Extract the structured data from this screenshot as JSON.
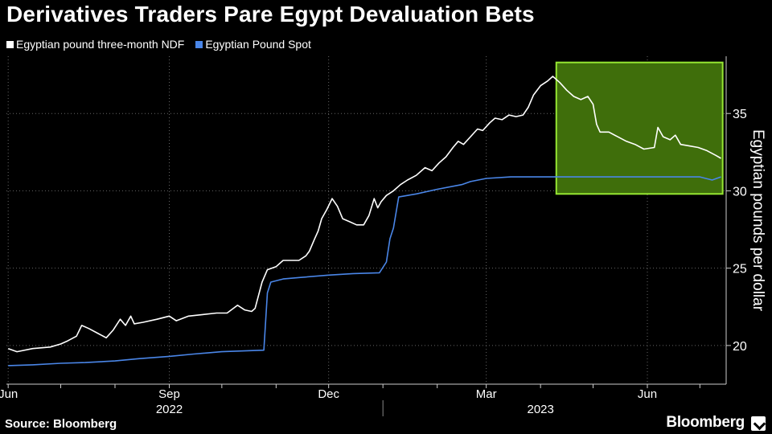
{
  "header": {
    "title": "Derivatives Traders Pare Egypt Devaluation Bets"
  },
  "footer": {
    "source": "Source: Bloomberg",
    "brand": "Bloomberg"
  },
  "colors": {
    "background": "#000000",
    "ndf_line": "#ffffff",
    "spot_line": "#4a86e8",
    "highlight_fill": "#3f6e0b",
    "highlight_stroke": "#96e632",
    "gridline": "#666666"
  },
  "chart_data": {
    "type": "line",
    "title": "Derivatives Traders Pare Egypt Devaluation Bets",
    "xlabel": "",
    "ylabel": "Egyptian pounds per dollar",
    "ylim": [
      17.5,
      38.7
    ],
    "yticks": [
      20,
      25,
      30,
      35
    ],
    "xlim": [
      "2022-05-31",
      "2023-07-16"
    ],
    "xticks": [
      {
        "date": "2022-06-01",
        "label": "Jun"
      },
      {
        "date": "2022-09-01",
        "label": "Sep"
      },
      {
        "date": "2022-12-01",
        "label": "Dec"
      },
      {
        "date": "2023-03-01",
        "label": "Mar"
      },
      {
        "date": "2023-06-01",
        "label": "Jun"
      }
    ],
    "year_labels": [
      {
        "label": "2022",
        "date": "2022-09-01"
      },
      {
        "label": "2023",
        "date": "2023-04-01"
      }
    ],
    "year_divider": "2023-01-01",
    "grid": true,
    "legend_position": "top-left",
    "highlight": {
      "x_start": "2023-04-10",
      "x_end": "2023-07-14",
      "y_low": 29.8,
      "y_high": 38.3
    },
    "series": [
      {
        "name": "Egyptian pound three-month NDF",
        "color": "#ffffff",
        "points": [
          [
            "2022-06-01",
            19.8
          ],
          [
            "2022-06-06",
            19.6
          ],
          [
            "2022-06-15",
            19.8
          ],
          [
            "2022-06-25",
            19.9
          ],
          [
            "2022-07-01",
            20.1
          ],
          [
            "2022-07-05",
            20.3
          ],
          [
            "2022-07-10",
            20.6
          ],
          [
            "2022-07-13",
            21.3
          ],
          [
            "2022-07-17",
            21.1
          ],
          [
            "2022-07-22",
            20.8
          ],
          [
            "2022-07-27",
            20.5
          ],
          [
            "2022-07-31",
            21.0
          ],
          [
            "2022-08-04",
            21.7
          ],
          [
            "2022-08-07",
            21.3
          ],
          [
            "2022-08-10",
            21.9
          ],
          [
            "2022-08-12",
            21.4
          ],
          [
            "2022-08-17",
            21.5
          ],
          [
            "2022-08-25",
            21.7
          ],
          [
            "2022-09-01",
            21.9
          ],
          [
            "2022-09-05",
            21.6
          ],
          [
            "2022-09-12",
            21.9
          ],
          [
            "2022-09-20",
            22.0
          ],
          [
            "2022-09-28",
            22.1
          ],
          [
            "2022-10-04",
            22.1
          ],
          [
            "2022-10-10",
            22.6
          ],
          [
            "2022-10-14",
            22.3
          ],
          [
            "2022-10-18",
            22.2
          ],
          [
            "2022-10-20",
            22.4
          ],
          [
            "2022-10-24",
            24.1
          ],
          [
            "2022-10-27",
            24.9
          ],
          [
            "2022-11-01",
            25.1
          ],
          [
            "2022-11-05",
            25.5
          ],
          [
            "2022-11-10",
            25.5
          ],
          [
            "2022-11-14",
            25.5
          ],
          [
            "2022-11-18",
            25.8
          ],
          [
            "2022-11-20",
            26.1
          ],
          [
            "2022-11-23",
            26.9
          ],
          [
            "2022-11-25",
            27.4
          ],
          [
            "2022-11-27",
            28.2
          ],
          [
            "2022-11-30",
            28.8
          ],
          [
            "2022-12-03",
            29.5
          ],
          [
            "2022-12-06",
            29.0
          ],
          [
            "2022-12-09",
            28.2
          ],
          [
            "2022-12-13",
            28.0
          ],
          [
            "2022-12-17",
            27.8
          ],
          [
            "2022-12-21",
            27.8
          ],
          [
            "2022-12-24",
            28.4
          ],
          [
            "2022-12-27",
            29.5
          ],
          [
            "2022-12-29",
            28.9
          ],
          [
            "2022-12-31",
            29.3
          ],
          [
            "2023-01-03",
            29.7
          ],
          [
            "2023-01-07",
            30.0
          ],
          [
            "2023-01-11",
            30.4
          ],
          [
            "2023-01-15",
            30.7
          ],
          [
            "2023-01-20",
            31.0
          ],
          [
            "2023-01-25",
            31.5
          ],
          [
            "2023-01-29",
            31.3
          ],
          [
            "2023-02-02",
            31.8
          ],
          [
            "2023-02-06",
            32.2
          ],
          [
            "2023-02-10",
            32.8
          ],
          [
            "2023-02-13",
            33.2
          ],
          [
            "2023-02-16",
            33.0
          ],
          [
            "2023-02-20",
            33.5
          ],
          [
            "2023-02-24",
            34.0
          ],
          [
            "2023-02-27",
            33.9
          ],
          [
            "2023-03-03",
            34.4
          ],
          [
            "2023-03-06",
            34.7
          ],
          [
            "2023-03-10",
            34.6
          ],
          [
            "2023-03-14",
            34.9
          ],
          [
            "2023-03-18",
            34.8
          ],
          [
            "2023-03-22",
            34.9
          ],
          [
            "2023-03-25",
            35.4
          ],
          [
            "2023-03-28",
            36.2
          ],
          [
            "2023-04-01",
            36.8
          ],
          [
            "2023-04-05",
            37.1
          ],
          [
            "2023-04-08",
            37.4
          ],
          [
            "2023-04-12",
            37.0
          ],
          [
            "2023-04-16",
            36.5
          ],
          [
            "2023-04-20",
            36.1
          ],
          [
            "2023-04-24",
            35.9
          ],
          [
            "2023-04-28",
            36.1
          ],
          [
            "2023-05-01",
            35.6
          ],
          [
            "2023-05-03",
            34.3
          ],
          [
            "2023-05-05",
            33.8
          ],
          [
            "2023-05-10",
            33.8
          ],
          [
            "2023-05-15",
            33.5
          ],
          [
            "2023-05-20",
            33.2
          ],
          [
            "2023-05-25",
            33.0
          ],
          [
            "2023-05-30",
            32.7
          ],
          [
            "2023-06-05",
            32.8
          ],
          [
            "2023-06-07",
            34.1
          ],
          [
            "2023-06-10",
            33.5
          ],
          [
            "2023-06-14",
            33.3
          ],
          [
            "2023-06-17",
            33.6
          ],
          [
            "2023-06-20",
            33.0
          ],
          [
            "2023-06-25",
            32.9
          ],
          [
            "2023-06-30",
            32.8
          ],
          [
            "2023-07-05",
            32.6
          ],
          [
            "2023-07-10",
            32.3
          ],
          [
            "2023-07-13",
            32.1
          ]
        ]
      },
      {
        "name": "Egyptian Pound Spot",
        "color": "#4a86e8",
        "points": [
          [
            "2022-06-01",
            18.7
          ],
          [
            "2022-06-15",
            18.75
          ],
          [
            "2022-07-01",
            18.85
          ],
          [
            "2022-07-15",
            18.9
          ],
          [
            "2022-08-01",
            19.0
          ],
          [
            "2022-08-15",
            19.15
          ],
          [
            "2022-09-01",
            19.3
          ],
          [
            "2022-09-15",
            19.45
          ],
          [
            "2022-10-01",
            19.6
          ],
          [
            "2022-10-25",
            19.7
          ],
          [
            "2022-10-27",
            23.4
          ],
          [
            "2022-10-29",
            24.1
          ],
          [
            "2022-11-05",
            24.3
          ],
          [
            "2022-11-15",
            24.4
          ],
          [
            "2022-12-01",
            24.55
          ],
          [
            "2022-12-15",
            24.65
          ],
          [
            "2022-12-30",
            24.7
          ],
          [
            "2023-01-03",
            25.4
          ],
          [
            "2023-01-05",
            26.9
          ],
          [
            "2023-01-07",
            27.6
          ],
          [
            "2023-01-10",
            29.6
          ],
          [
            "2023-01-15",
            29.7
          ],
          [
            "2023-01-20",
            29.8
          ],
          [
            "2023-02-01",
            30.1
          ],
          [
            "2023-02-15",
            30.4
          ],
          [
            "2023-02-20",
            30.6
          ],
          [
            "2023-03-01",
            30.8
          ],
          [
            "2023-03-15",
            30.9
          ],
          [
            "2023-04-01",
            30.9
          ],
          [
            "2023-05-01",
            30.9
          ],
          [
            "2023-06-01",
            30.9
          ],
          [
            "2023-07-01",
            30.9
          ],
          [
            "2023-07-08",
            30.7
          ],
          [
            "2023-07-13",
            30.9
          ]
        ]
      }
    ]
  }
}
